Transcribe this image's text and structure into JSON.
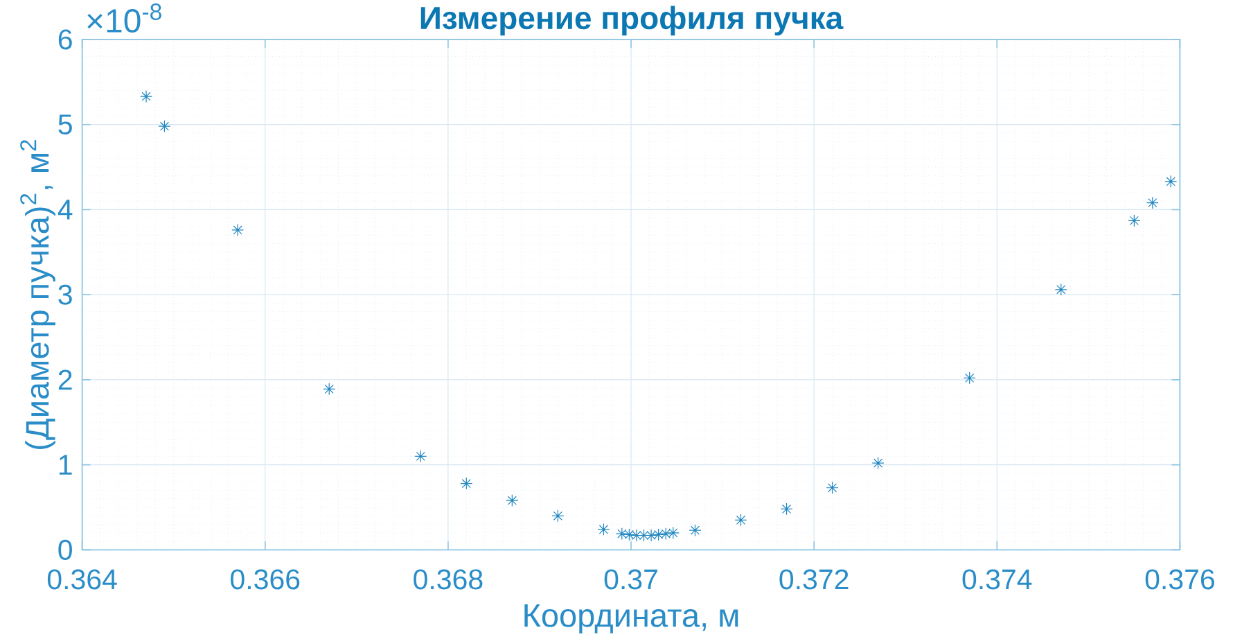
{
  "chart_data": {
    "type": "scatter",
    "title": "Измерение профиля пучка",
    "xlabel": "Координата, м",
    "ylabel": "(Диаметр пучка)$^{2}$, м$^{2}$",
    "annotations": [
      "×10$^{-8}$"
    ],
    "x": [
      0.3647,
      0.3649,
      0.3657,
      0.3667,
      0.3677,
      0.3682,
      0.3687,
      0.3692,
      0.3697,
      0.3699,
      0.36998,
      0.37006,
      0.37014,
      0.37022,
      0.3703,
      0.37038,
      0.37046,
      0.3707,
      0.3712,
      0.3717,
      0.3722,
      0.3727,
      0.3737,
      0.3747,
      0.3755,
      0.3757,
      0.3759
    ],
    "values": [
      5.33,
      4.98,
      3.76,
      1.89,
      1.1,
      0.78,
      0.58,
      0.4,
      0.24,
      0.19,
      0.18,
      0.17,
      0.17,
      0.17,
      0.18,
      0.19,
      0.2,
      0.23,
      0.35,
      0.48,
      0.73,
      1.02,
      2.02,
      3.06,
      3.87,
      4.08,
      4.33
    ],
    "color": "#1f86c0",
    "marker": "cross",
    "grid": true,
    "xlim": [
      0.364,
      0.376
    ],
    "xticks": [
      0.364,
      0.366,
      0.368,
      0.37,
      0.372,
      0.374,
      0.376
    ],
    "ylim": [
      0,
      6
    ],
    "yticks": [
      0,
      1,
      2,
      3,
      4,
      5,
      6
    ]
  }
}
